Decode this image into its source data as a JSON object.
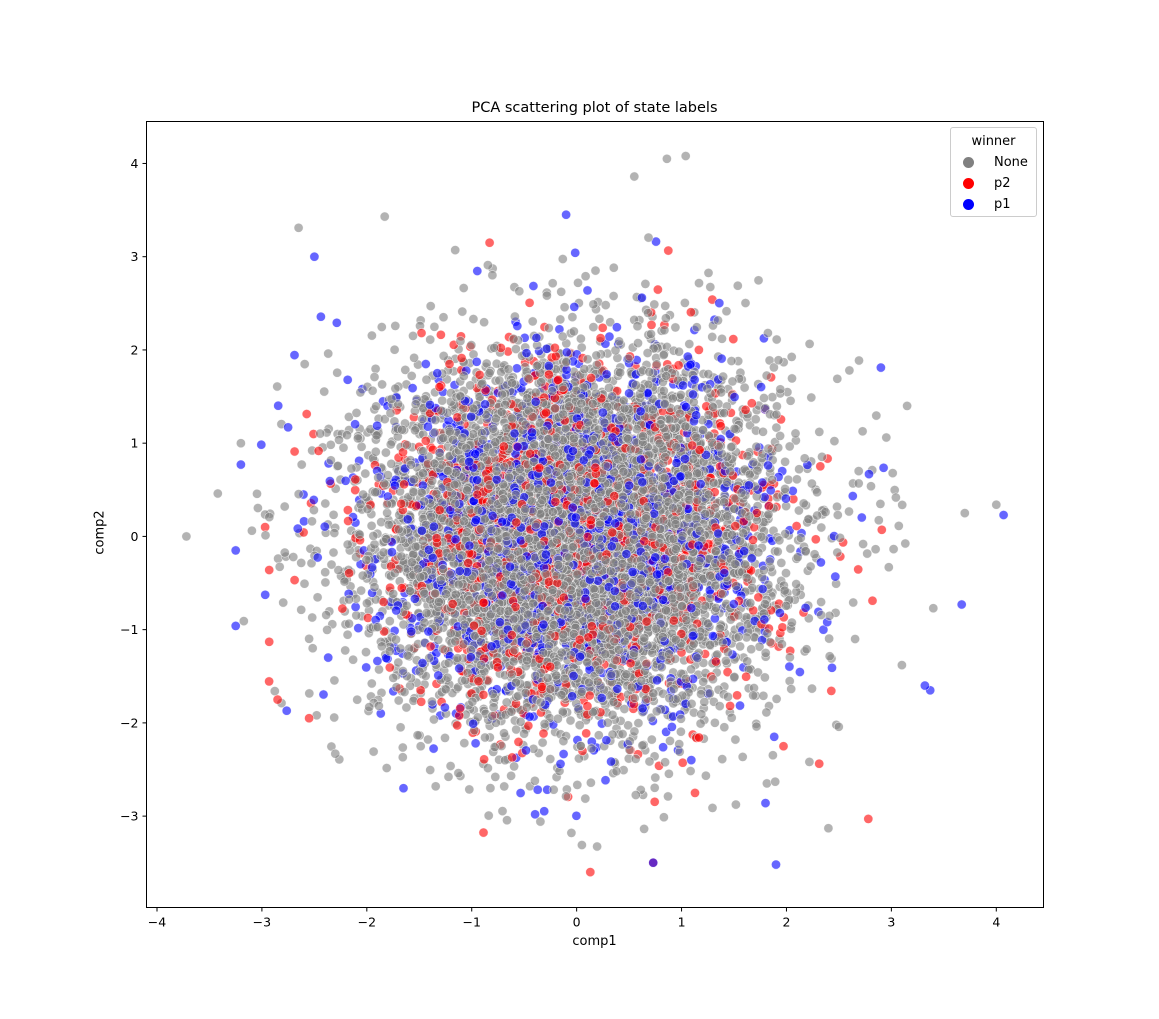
{
  "chart_data": {
    "type": "scatter",
    "title": "PCA scattering plot of state labels",
    "xlabel": "comp1",
    "ylabel": "comp2",
    "xlim": [
      -4.1,
      4.45
    ],
    "ylim": [
      -3.98,
      4.45
    ],
    "xticks": [
      -4,
      -3,
      -2,
      -1,
      0,
      1,
      2,
      3,
      4
    ],
    "yticks": [
      -3,
      -2,
      -1,
      0,
      1,
      2,
      3,
      4
    ],
    "xtick_labels": [
      "−4",
      "−3",
      "−2",
      "−1",
      "0",
      "1",
      "2",
      "3",
      "4"
    ],
    "ytick_labels": [
      "−3",
      "−2",
      "−1",
      "0",
      "1",
      "2",
      "3",
      "4"
    ],
    "grid": false,
    "legend": {
      "title": "winner",
      "position": "upper right",
      "entries": [
        {
          "label": "None",
          "color": "#808080"
        },
        {
          "label": "p2",
          "color": "#ff0000"
        },
        {
          "label": "p1",
          "color": "#0000ff"
        }
      ]
    },
    "distribution": {
      "description": "Dense roughly isotropic Gaussian cloud centered near (0,0), std approx 1 on both axes; None is the majority class, p1 and p2 minority classes interspersed throughout",
      "center": [
        0,
        0
      ],
      "std": [
        1.0,
        1.0
      ],
      "approx_counts": {
        "None": 7000,
        "p2": 1200,
        "p1": 1400
      },
      "alpha": 0.6
    },
    "series": [
      {
        "name": "None",
        "color": "#808080",
        "notable_points": [
          [
            -3.72,
            0.0
          ],
          [
            -3.42,
            0.46
          ],
          [
            -2.65,
            3.31
          ],
          [
            -1.83,
            3.43
          ],
          [
            0.55,
            3.86
          ],
          [
            0.86,
            4.05
          ],
          [
            1.04,
            4.08
          ],
          [
            4.0,
            0.34
          ],
          [
            3.7,
            0.25
          ],
          [
            3.4,
            -0.77
          ],
          [
            3.1,
            -1.38
          ],
          [
            2.4,
            -3.13
          ],
          [
            0.05,
            -3.31
          ],
          [
            -0.05,
            -3.18
          ],
          [
            -2.3,
            -2.33
          ],
          [
            -3.2,
            1.0
          ],
          [
            3.15,
            1.4
          ]
        ]
      },
      {
        "name": "p2",
        "color": "#ff0000",
        "notable_points": [
          [
            0.13,
            -3.6
          ],
          [
            2.78,
            -3.03
          ],
          [
            -2.55,
            -1.95
          ],
          [
            -2.85,
            -1.75
          ],
          [
            -2.97,
            0.1
          ],
          [
            -2.93,
            -0.36
          ],
          [
            -0.83,
            3.15
          ],
          [
            -2.93,
            -1.13
          ],
          [
            2.82,
            -0.69
          ],
          [
            0.73,
            -3.5
          ]
        ]
      },
      {
        "name": "p1",
        "color": "#0000ff",
        "notable_points": [
          [
            -0.1,
            3.45
          ],
          [
            -2.5,
            3.0
          ],
          [
            -3.25,
            -0.15
          ],
          [
            -3.25,
            -0.96
          ],
          [
            4.07,
            0.23
          ],
          [
            3.67,
            -0.73
          ],
          [
            3.37,
            -1.65
          ],
          [
            3.32,
            -1.6
          ],
          [
            1.9,
            -3.52
          ],
          [
            0.73,
            -3.5
          ],
          [
            1.8,
            -2.86
          ],
          [
            2.9,
            1.81
          ],
          [
            -1.65,
            -2.7
          ],
          [
            -2.75,
            1.17
          ],
          [
            -3.2,
            0.77
          ]
        ]
      }
    ]
  }
}
